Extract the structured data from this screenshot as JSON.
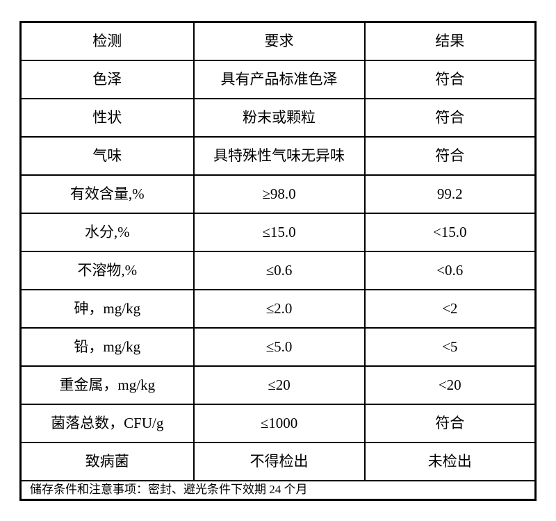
{
  "table": {
    "columns": [
      "检测",
      "要求",
      "结果"
    ],
    "rows": [
      {
        "test": "色泽",
        "requirement": "具有产品标准色泽",
        "result": "符合"
      },
      {
        "test": "性状",
        "requirement": "粉末或颗粒",
        "result": "符合"
      },
      {
        "test": "气味",
        "requirement": "具特殊性气味无异味",
        "result": "符合"
      },
      {
        "test": "有效含量,%",
        "requirement": "≥98.0",
        "result": "99.2"
      },
      {
        "test": "水分,%",
        "requirement": "≤15.0",
        "result": "<15.0"
      },
      {
        "test": "不溶物,%",
        "requirement": "≤0.6",
        "result": "<0.6"
      },
      {
        "test": "砷，mg/kg",
        "requirement": "≤2.0",
        "result": "<2"
      },
      {
        "test": "铅，mg/kg",
        "requirement": "≤5.0",
        "result": "<5"
      },
      {
        "test": "重金属，mg/kg",
        "requirement": "≤20",
        "result": "<20"
      },
      {
        "test": "菌落总数，CFU/g",
        "requirement": "≤1000",
        "result": "符合"
      },
      {
        "test": "致病菌",
        "requirement": "不得检出",
        "result": "未检出"
      }
    ],
    "footer": "储存条件和注意事项：密封、避光条件下效期 24 个月"
  },
  "colors": {
    "text": "#000000",
    "border": "#000000",
    "background": "#ffffff"
  }
}
